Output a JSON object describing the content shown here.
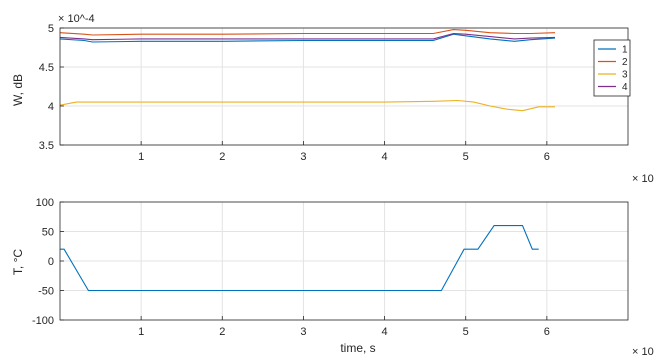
{
  "chart_data": [
    {
      "type": "line",
      "ylabel": "W, dB",
      "xlabel": "",
      "y_exponent_label": "× 10^-4",
      "x_exponent_label": "× 10",
      "xlim": [
        0,
        7
      ],
      "ylim": [
        3.5,
        5
      ],
      "xticks": [
        "1",
        "2",
        "3",
        "4",
        "5",
        "6"
      ],
      "xtick_values": [
        1,
        2,
        3,
        4,
        5,
        6
      ],
      "yticks": [
        "3.5",
        "4",
        "4.5",
        "5"
      ],
      "ytick_values": [
        3.5,
        4,
        4.5,
        5
      ],
      "grid": true,
      "legend_position": "top-right",
      "series": [
        {
          "name": "1",
          "color": "#0072BD",
          "x": [
            0,
            0.3,
            0.4,
            1.0,
            2.0,
            3.0,
            4.0,
            4.6,
            4.85,
            5.0,
            5.3,
            5.6,
            5.8,
            6.1
          ],
          "y": [
            4.86,
            4.84,
            4.82,
            4.83,
            4.83,
            4.84,
            4.84,
            4.84,
            4.92,
            4.9,
            4.86,
            4.83,
            4.85,
            4.87
          ]
        },
        {
          "name": "2",
          "color": "#D95319",
          "x": [
            0,
            0.3,
            0.4,
            1.0,
            2.0,
            3.0,
            4.0,
            4.6,
            4.85,
            5.0,
            5.3,
            5.6,
            5.8,
            6.1
          ],
          "y": [
            4.94,
            4.92,
            4.91,
            4.92,
            4.92,
            4.93,
            4.93,
            4.93,
            4.98,
            4.97,
            4.94,
            4.93,
            4.93,
            4.94
          ]
        },
        {
          "name": "3",
          "color": "#EDB120",
          "x": [
            0,
            0.2,
            0.4,
            1.0,
            2.0,
            3.0,
            4.0,
            4.6,
            4.9,
            5.1,
            5.3,
            5.5,
            5.7,
            5.9,
            6.1
          ],
          "y": [
            4.01,
            4.05,
            4.05,
            4.05,
            4.05,
            4.05,
            4.05,
            4.06,
            4.07,
            4.05,
            4.0,
            3.96,
            3.94,
            3.99,
            3.99
          ]
        },
        {
          "name": "4",
          "color": "#7E2F8E",
          "x": [
            0,
            0.3,
            0.4,
            1.0,
            2.0,
            3.0,
            4.0,
            4.6,
            4.85,
            5.0,
            5.3,
            5.6,
            5.8,
            6.1
          ],
          "y": [
            4.88,
            4.86,
            4.85,
            4.86,
            4.86,
            4.86,
            4.86,
            4.86,
            4.93,
            4.92,
            4.89,
            4.86,
            4.87,
            4.88
          ]
        }
      ]
    },
    {
      "type": "line",
      "ylabel": "T, °C",
      "xlabel": "time, s",
      "x_exponent_label": "× 10",
      "xlim": [
        0,
        7
      ],
      "ylim": [
        -100,
        100
      ],
      "xticks": [
        "1",
        "2",
        "3",
        "4",
        "5",
        "6"
      ],
      "xtick_values": [
        1,
        2,
        3,
        4,
        5,
        6
      ],
      "yticks": [
        "-100",
        "-50",
        "0",
        "50",
        "100"
      ],
      "ytick_values": [
        -100,
        -50,
        0,
        50,
        100
      ],
      "grid": true,
      "series": [
        {
          "color": "#0072BD",
          "x": [
            0,
            0.05,
            0.35,
            4.7,
            4.98,
            5.15,
            5.35,
            5.7,
            5.82,
            5.9
          ],
          "y": [
            20,
            20,
            -50,
            -50,
            20,
            20,
            60,
            60,
            20,
            20
          ]
        }
      ]
    }
  ]
}
